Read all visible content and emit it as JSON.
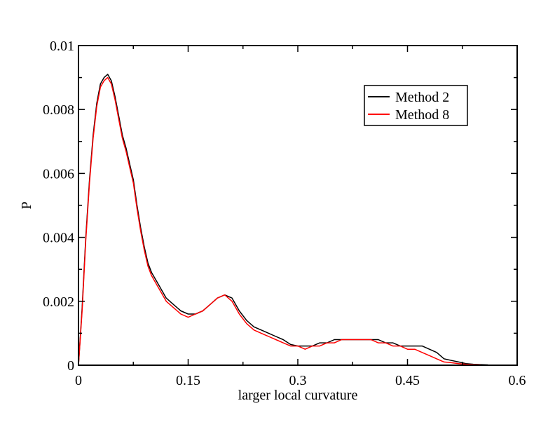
{
  "chart_data": {
    "type": "line",
    "title": "",
    "xlabel": "larger local curvature",
    "ylabel": "P",
    "xlim": [
      0,
      0.6
    ],
    "ylim": [
      0,
      0.01
    ],
    "x_ticks": [
      0,
      0.15,
      0.3,
      0.45,
      0.6
    ],
    "x_tick_labels": [
      "0",
      "0.15",
      "0.3",
      "0.45",
      "0.6"
    ],
    "y_ticks": [
      0,
      0.002,
      0.004,
      0.006,
      0.008,
      0.01
    ],
    "y_tick_labels": [
      "0",
      "0.002",
      "0.004",
      "0.006",
      "0.008",
      "0.01"
    ],
    "grid": false,
    "legend_position": "top-right",
    "series": [
      {
        "name": "Method 2",
        "color": "#000000",
        "x": [
          0,
          0.005,
          0.01,
          0.015,
          0.02,
          0.025,
          0.03,
          0.035,
          0.04,
          0.045,
          0.05,
          0.055,
          0.06,
          0.065,
          0.07,
          0.075,
          0.08,
          0.085,
          0.09,
          0.095,
          0.1,
          0.11,
          0.12,
          0.13,
          0.14,
          0.15,
          0.16,
          0.17,
          0.18,
          0.19,
          0.2,
          0.21,
          0.22,
          0.23,
          0.24,
          0.25,
          0.26,
          0.27,
          0.28,
          0.29,
          0.3,
          0.31,
          0.32,
          0.33,
          0.34,
          0.35,
          0.36,
          0.37,
          0.38,
          0.39,
          0.4,
          0.41,
          0.42,
          0.43,
          0.44,
          0.45,
          0.46,
          0.47,
          0.48,
          0.49,
          0.5,
          0.51,
          0.52,
          0.53,
          0.54,
          0.55,
          0.56
        ],
        "values": [
          0,
          0.0018,
          0.004,
          0.0058,
          0.0072,
          0.0082,
          0.0088,
          0.009,
          0.0091,
          0.0089,
          0.0084,
          0.0078,
          0.0072,
          0.0068,
          0.0063,
          0.0058,
          0.005,
          0.0043,
          0.0037,
          0.0032,
          0.0029,
          0.0025,
          0.0021,
          0.0019,
          0.0017,
          0.0016,
          0.0016,
          0.0017,
          0.0019,
          0.0021,
          0.0022,
          0.0021,
          0.0017,
          0.0014,
          0.0012,
          0.0011,
          0.001,
          0.0009,
          0.0008,
          0.00065,
          0.0006,
          0.0006,
          0.0006,
          0.0007,
          0.0007,
          0.0008,
          0.0008,
          0.0008,
          0.0008,
          0.0008,
          0.0008,
          0.0008,
          0.0007,
          0.0007,
          0.0006,
          0.0006,
          0.0006,
          0.0006,
          0.0005,
          0.0004,
          0.0002,
          0.00015,
          0.0001,
          5e-05,
          3e-05,
          2e-05,
          1e-05
        ]
      },
      {
        "name": "Method 8",
        "color": "#ff0000",
        "x": [
          0,
          0.005,
          0.01,
          0.015,
          0.02,
          0.025,
          0.03,
          0.035,
          0.04,
          0.045,
          0.05,
          0.055,
          0.06,
          0.065,
          0.07,
          0.075,
          0.08,
          0.085,
          0.09,
          0.095,
          0.1,
          0.11,
          0.12,
          0.13,
          0.14,
          0.15,
          0.16,
          0.17,
          0.18,
          0.19,
          0.2,
          0.21,
          0.22,
          0.23,
          0.24,
          0.25,
          0.26,
          0.27,
          0.28,
          0.29,
          0.3,
          0.31,
          0.32,
          0.33,
          0.34,
          0.35,
          0.36,
          0.37,
          0.38,
          0.39,
          0.4,
          0.41,
          0.42,
          0.43,
          0.44,
          0.45,
          0.46,
          0.47,
          0.48,
          0.49,
          0.5,
          0.51,
          0.52,
          0.53,
          0.54,
          0.55
        ],
        "values": [
          0,
          0.0017,
          0.0039,
          0.0057,
          0.0071,
          0.0081,
          0.0087,
          0.0089,
          0.009,
          0.0088,
          0.0083,
          0.0077,
          0.0071,
          0.0067,
          0.0062,
          0.0057,
          0.0049,
          0.0042,
          0.0036,
          0.0031,
          0.0028,
          0.0024,
          0.002,
          0.0018,
          0.0016,
          0.0015,
          0.0016,
          0.0017,
          0.0019,
          0.0021,
          0.0022,
          0.002,
          0.0016,
          0.0013,
          0.0011,
          0.001,
          0.0009,
          0.0008,
          0.0007,
          0.0006,
          0.0006,
          0.0005,
          0.0006,
          0.0006,
          0.0007,
          0.0007,
          0.0008,
          0.0008,
          0.0008,
          0.0008,
          0.0008,
          0.0007,
          0.0007,
          0.0006,
          0.0006,
          0.0005,
          0.0005,
          0.0004,
          0.0003,
          0.0002,
          0.0001,
          8e-05,
          5e-05,
          3e-05,
          2e-05,
          1e-05
        ]
      }
    ]
  }
}
